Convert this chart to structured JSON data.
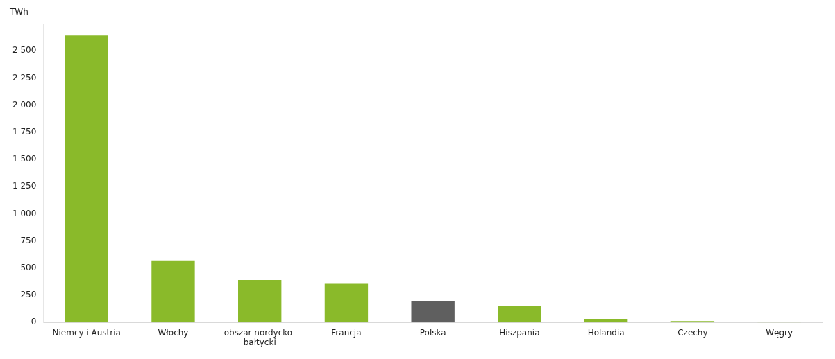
{
  "chart_data": {
    "type": "bar",
    "ylabel": "TWh",
    "categories": [
      "Niemcy i Austria",
      "Włochy",
      "obszar nordycko-bałtycki",
      "Francja",
      "Polska",
      "Hiszpania",
      "Holandia",
      "Czechy",
      "Węgry"
    ],
    "values": [
      2640,
      570,
      390,
      355,
      195,
      150,
      30,
      12,
      6
    ],
    "colors": [
      "#8aba2a",
      "#8aba2a",
      "#8aba2a",
      "#8aba2a",
      "#5f5f5f",
      "#8aba2a",
      "#8aba2a",
      "#8aba2a",
      "#8aba2a"
    ],
    "ylim": [
      0,
      2750
    ],
    "yticks": [
      0,
      {
        "value": 250,
        "label": "250"
      },
      {
        "value": 500,
        "label": "500"
      },
      {
        "value": 750,
        "label": "750"
      },
      {
        "value": 1000,
        "label": "1 000"
      },
      {
        "value": 1250,
        "label": "1 250"
      },
      {
        "value": 1500,
        "label": "1 500"
      },
      {
        "value": 1750,
        "label": "1 750"
      },
      {
        "value": 2000,
        "label": "2 000"
      },
      {
        "value": 2250,
        "label": "2 250"
      },
      {
        "value": 2500,
        "label": "2 500"
      }
    ],
    "grid": false,
    "legend": false
  }
}
